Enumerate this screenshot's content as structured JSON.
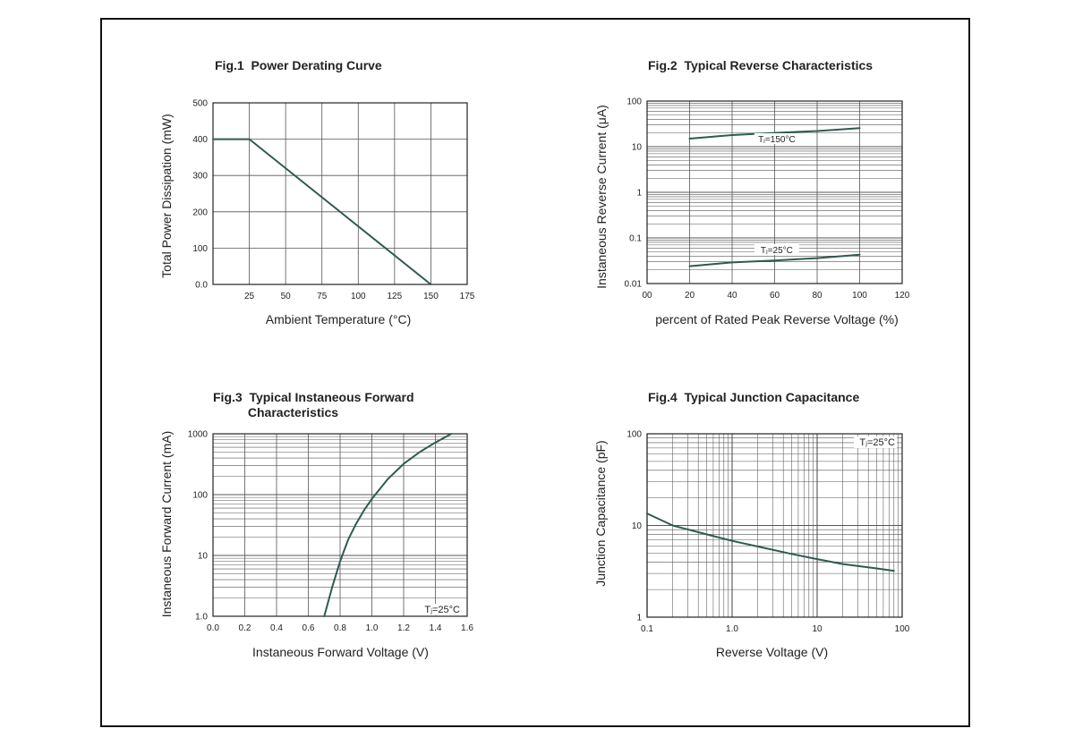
{
  "colors": {
    "curve": "#2e5a52",
    "grid": "#555555",
    "frame": "#111111"
  },
  "chart_data": [
    {
      "id": "fig1",
      "type": "line",
      "title": "Fig.1  Power Derating Curve",
      "xlabel": "Ambient Temperature (°C)",
      "ylabel": "Total Power Dissipation  (mW)",
      "xlim": [
        0,
        175
      ],
      "ylim": [
        0,
        500
      ],
      "xscale": "linear",
      "yscale": "linear",
      "xticks": [
        "25",
        "50",
        "75",
        "100",
        "125",
        "150",
        "175"
      ],
      "yticks": [
        "0.0",
        "100",
        "200",
        "300",
        "400",
        "500"
      ],
      "grid": true,
      "series": [
        {
          "x": [
            0,
            25,
            150
          ],
          "y": [
            400,
            400,
            0
          ]
        }
      ]
    },
    {
      "id": "fig2",
      "type": "line",
      "title": "Fig.2  Typical Reverse Characteristics",
      "xlabel": "percent of Rated  Peak Reverse Voltage (%)",
      "ylabel": "Instaneous Reverse Current  (μA)",
      "xlim": [
        0,
        120
      ],
      "ylim": [
        0.01,
        100
      ],
      "xscale": "linear",
      "yscale": "log",
      "xticks": [
        "00",
        "20",
        "40",
        "60",
        "80",
        "100",
        "120"
      ],
      "yticks": [
        "0.01",
        "0.1",
        "1",
        "10",
        "100"
      ],
      "grid": true,
      "series": [
        {
          "name": "Tⱼ=150°C",
          "x": [
            20,
            40,
            60,
            80,
            100
          ],
          "y": [
            15,
            18,
            20,
            22,
            25.5
          ]
        },
        {
          "name": "Tⱼ=25°C",
          "x": [
            20,
            40,
            60,
            80,
            100
          ],
          "y": [
            0.024,
            0.029,
            0.032,
            0.036,
            0.043
          ]
        }
      ]
    },
    {
      "id": "fig3",
      "type": "line",
      "title": "Fig.3  Typical Instaneous Forward\n          Characteristics",
      "xlabel": "Instaneous Forward Voltage (V)",
      "ylabel": "Instaneous Forward Current (mA)",
      "xlim": [
        0,
        1.6
      ],
      "ylim": [
        1,
        1000
      ],
      "xscale": "linear",
      "yscale": "log",
      "xticks": [
        "0.0",
        "0.2",
        "0.4",
        "0.6",
        "0.8",
        "1.0",
        "1.2",
        "1.4",
        "1.6"
      ],
      "yticks": [
        "1.0",
        "10",
        "100",
        "1000"
      ],
      "grid": true,
      "annotation": "Tⱼ=25°C",
      "series": [
        {
          "x": [
            0.7,
            0.75,
            0.8,
            0.85,
            0.9,
            0.95,
            1.0,
            1.1,
            1.2,
            1.3,
            1.4,
            1.5
          ],
          "y": [
            1.0,
            3.0,
            8.0,
            18,
            33,
            55,
            85,
            180,
            320,
            500,
            720,
            1000
          ]
        }
      ]
    },
    {
      "id": "fig4",
      "type": "line",
      "title": "Fig.4  Typical Junction Capacitance",
      "xlabel": "Reverse  Voltage (V)",
      "ylabel": "Junction Capacitance (pF)",
      "xlim": [
        0.1,
        100
      ],
      "ylim": [
        1,
        100
      ],
      "xscale": "log",
      "yscale": "log",
      "xticks": [
        "0.1",
        "1.0",
        "10",
        "100"
      ],
      "yticks": [
        "1",
        "10",
        "100"
      ],
      "grid": true,
      "annotation": "Tⱼ=25°C",
      "series": [
        {
          "x": [
            0.1,
            0.2,
            0.5,
            1,
            2,
            5,
            10,
            20,
            50,
            80
          ],
          "y": [
            13.5,
            10,
            8,
            6.8,
            5.9,
            4.9,
            4.3,
            3.8,
            3.4,
            3.2
          ]
        }
      ]
    }
  ]
}
